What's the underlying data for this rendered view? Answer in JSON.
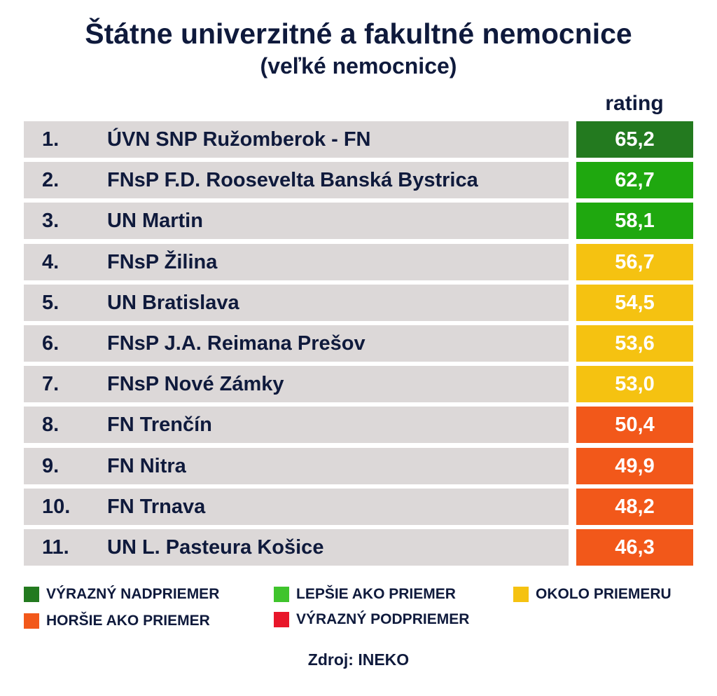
{
  "title": "Štátne univerzitné a fakultné nemocnice",
  "subtitle": "(veľké nemocnice)",
  "rating_header": "rating",
  "source": "Zdroj: INEKO",
  "colors": {
    "vyrazny_nadpriemer": "#237a1f",
    "lepsie_ako_priemer": "#1fa80f",
    "okolo_priemeru": "#f5c211",
    "horsie_ako_priemer": "#f2581a",
    "vyrazny_podpriemer": "#e8162a",
    "row_background": "#dcd8d8",
    "text": "#0f1a3c"
  },
  "legend": [
    {
      "label": "VÝRAZNÝ NADPRIEMER",
      "color": "#237a1f"
    },
    {
      "label": "LEPŠIE AKO PRIEMER",
      "color": "#3fc42c"
    },
    {
      "label": "OKOLO PRIEMERU",
      "color": "#f5c211"
    },
    {
      "label": "HORŠIE AKO PRIEMER",
      "color": "#f2581a"
    },
    {
      "label": "VÝRAZNÝ PODPRIEMER",
      "color": "#e8162a"
    }
  ],
  "chart_data": {
    "type": "table",
    "title": "Štátne univerzitné a fakultné nemocnice",
    "subtitle": "(veľké nemocnice)",
    "columns": [
      "",
      "",
      "rating"
    ],
    "rows": [
      {
        "rank": "1.",
        "name": "ÚVN SNP Ružomberok - FN",
        "rating": "65,2",
        "category": "VÝRAZNÝ NADPRIEMER",
        "color": "#237a1f"
      },
      {
        "rank": "2.",
        "name": "FNsP F.D. Roosevelta Banská Bystrica",
        "rating": "62,7",
        "category": "LEPŠIE AKO PRIEMER",
        "color": "#1fa80f"
      },
      {
        "rank": "3.",
        "name": "UN Martin",
        "rating": "58,1",
        "category": "LEPŠIE AKO PRIEMER",
        "color": "#1fa80f"
      },
      {
        "rank": "4.",
        "name": "FNsP Žilina",
        "rating": "56,7",
        "category": "OKOLO PRIEMERU",
        "color": "#f5c211"
      },
      {
        "rank": "5.",
        "name": "UN Bratislava",
        "rating": "54,5",
        "category": "OKOLO PRIEMERU",
        "color": "#f5c211"
      },
      {
        "rank": "6.",
        "name": "FNsP J.A. Reimana Prešov",
        "rating": "53,6",
        "category": "OKOLO PRIEMERU",
        "color": "#f5c211"
      },
      {
        "rank": "7.",
        "name": "FNsP Nové Zámky",
        "rating": "53,0",
        "category": "OKOLO PRIEMERU",
        "color": "#f5c211"
      },
      {
        "rank": "8.",
        "name": "FN Trenčín",
        "rating": "50,4",
        "category": "HORŠIE AKO PRIEMER",
        "color": "#f2581a"
      },
      {
        "rank": "9.",
        "name": "FN Nitra",
        "rating": "49,9",
        "category": "HORŠIE AKO PRIEMER",
        "color": "#f2581a"
      },
      {
        "rank": "10.",
        "name": "FN Trnava",
        "rating": "48,2",
        "category": "HORŠIE AKO PRIEMER",
        "color": "#f2581a"
      },
      {
        "rank": "11.",
        "name": "UN L. Pasteura Košice",
        "rating": "46,3",
        "category": "HORŠIE AKO PRIEMER",
        "color": "#f2581a"
      }
    ]
  }
}
